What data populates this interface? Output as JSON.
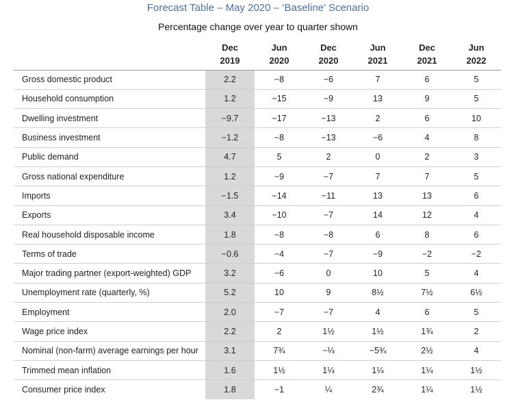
{
  "title": "Forecast Table – May 2020 – ‘Baseline’ Scenario",
  "subtitle": "Percentage change over year to quarter shown",
  "columns": [
    {
      "line1": "Dec",
      "line2": "2019"
    },
    {
      "line1": "Jun",
      "line2": "2020"
    },
    {
      "line1": "Dec",
      "line2": "2020"
    },
    {
      "line1": "Jun",
      "line2": "2021"
    },
    {
      "line1": "Dec",
      "line2": "2021"
    },
    {
      "line1": "Jun",
      "line2": "2022"
    }
  ],
  "rows": [
    {
      "label": "Gross domestic product",
      "values": [
        "2.2",
        "−8",
        "−6",
        "7",
        "6",
        "5"
      ]
    },
    {
      "label": "Household consumption",
      "values": [
        "1.2",
        "−15",
        "−9",
        "13",
        "9",
        "5"
      ]
    },
    {
      "label": "Dwelling investment",
      "values": [
        "−9.7",
        "−17",
        "−13",
        "2",
        "6",
        "10"
      ]
    },
    {
      "label": "Business investment",
      "values": [
        "−1.2",
        "−8",
        "−13",
        "−6",
        "4",
        "8"
      ]
    },
    {
      "label": "Public demand",
      "values": [
        "4.7",
        "5",
        "2",
        "0",
        "2",
        "3"
      ]
    },
    {
      "label": "Gross national expenditure",
      "values": [
        "1.2",
        "−9",
        "−7",
        "7",
        "7",
        "5"
      ]
    },
    {
      "label": "Imports",
      "values": [
        "−1.5",
        "−14",
        "−11",
        "13",
        "13",
        "6"
      ]
    },
    {
      "label": "Exports",
      "values": [
        "3.4",
        "−10",
        "−7",
        "14",
        "12",
        "4"
      ]
    },
    {
      "label": "Real household disposable income",
      "values": [
        "1.8",
        "−8",
        "−8",
        "6",
        "8",
        "6"
      ]
    },
    {
      "label": "Terms of trade",
      "values": [
        "−0.6",
        "−4",
        "−7",
        "−9",
        "−2",
        "−2"
      ]
    },
    {
      "label": "Major trading partner (export-weighted) GDP",
      "values": [
        "3.2",
        "−6",
        "0",
        "10",
        "5",
        "4"
      ]
    },
    {
      "label": "Unemployment rate (quarterly, %)",
      "values": [
        "5.2",
        "10",
        "9",
        "8½",
        "7½",
        "6½"
      ]
    },
    {
      "label": "Employment",
      "values": [
        "2.0",
        "−7",
        "−7",
        "4",
        "6",
        "5"
      ]
    },
    {
      "label": "Wage price index",
      "values": [
        "2.2",
        "2",
        "1½",
        "1½",
        "1¾",
        "2"
      ]
    },
    {
      "label": "Nominal (non-farm) average earnings per hour",
      "values": [
        "3.1",
        "7¾",
        "−¼",
        "−5¾",
        "2½",
        "4"
      ]
    },
    {
      "label": "Trimmed mean inflation",
      "values": [
        "1.6",
        "1½",
        "1¼",
        "1¼",
        "1¼",
        "1½"
      ]
    },
    {
      "label": "Consumer price index",
      "values": [
        "1.8",
        "−1",
        "¼",
        "2¾",
        "1¼",
        "1½"
      ]
    }
  ],
  "highlight_color": "#d9d9d9",
  "title_color": "#4a6fa5"
}
